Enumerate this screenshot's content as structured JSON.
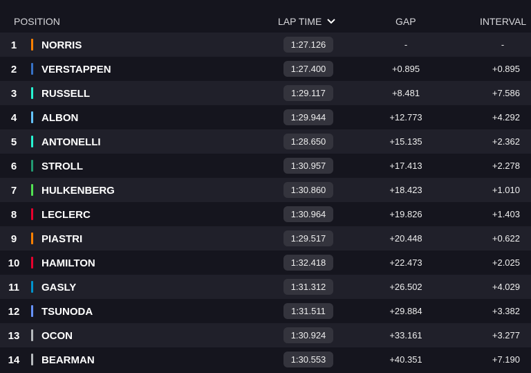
{
  "header": {
    "position": "POSITION",
    "lap_time": "LAP TIME",
    "gap": "GAP",
    "interval": "INTERVAL"
  },
  "rows": [
    {
      "position": 1,
      "color": "#ff8000",
      "driver": "NORRIS",
      "lap_time": "1:27.126",
      "gap": "-",
      "interval": "-"
    },
    {
      "position": 2,
      "color": "#3671c6",
      "driver": "VERSTAPPEN",
      "lap_time": "1:27.400",
      "gap": "+0.895",
      "interval": "+0.895"
    },
    {
      "position": 3,
      "color": "#27f4d2",
      "driver": "RUSSELL",
      "lap_time": "1:29.117",
      "gap": "+8.481",
      "interval": "+7.586"
    },
    {
      "position": 4,
      "color": "#64c4ff",
      "driver": "ALBON",
      "lap_time": "1:29.944",
      "gap": "+12.773",
      "interval": "+4.292"
    },
    {
      "position": 5,
      "color": "#27f4d2",
      "driver": "ANTONELLI",
      "lap_time": "1:28.650",
      "gap": "+15.135",
      "interval": "+2.362"
    },
    {
      "position": 6,
      "color": "#229971",
      "driver": "STROLL",
      "lap_time": "1:30.957",
      "gap": "+17.413",
      "interval": "+2.278"
    },
    {
      "position": 7,
      "color": "#52e252",
      "driver": "HULKENBERG",
      "lap_time": "1:30.860",
      "gap": "+18.423",
      "interval": "+1.010"
    },
    {
      "position": 8,
      "color": "#e8002d",
      "driver": "LECLERC",
      "lap_time": "1:30.964",
      "gap": "+19.826",
      "interval": "+1.403"
    },
    {
      "position": 9,
      "color": "#ff8000",
      "driver": "PIASTRI",
      "lap_time": "1:29.517",
      "gap": "+20.448",
      "interval": "+0.622"
    },
    {
      "position": 10,
      "color": "#e8002d",
      "driver": "HAMILTON",
      "lap_time": "1:32.418",
      "gap": "+22.473",
      "interval": "+2.025"
    },
    {
      "position": 11,
      "color": "#0093cc",
      "driver": "GASLY",
      "lap_time": "1:31.312",
      "gap": "+26.502",
      "interval": "+4.029"
    },
    {
      "position": 12,
      "color": "#6692ff",
      "driver": "TSUNODA",
      "lap_time": "1:31.511",
      "gap": "+29.884",
      "interval": "+3.382"
    },
    {
      "position": 13,
      "color": "#b6babd",
      "driver": "OCON",
      "lap_time": "1:30.924",
      "gap": "+33.161",
      "interval": "+3.277"
    },
    {
      "position": 14,
      "color": "#b6babd",
      "driver": "BEARMAN",
      "lap_time": "1:30.553",
      "gap": "+40.351",
      "interval": "+7.190"
    }
  ]
}
